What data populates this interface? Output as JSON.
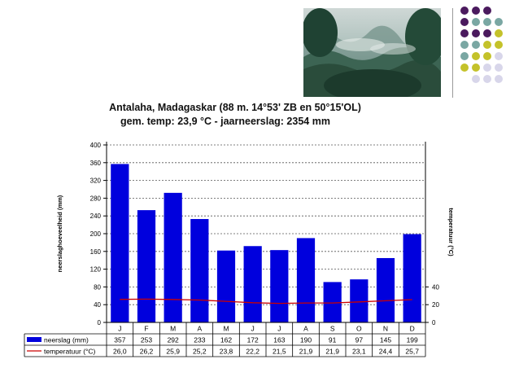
{
  "header": {
    "title_line1": "Antalaha, Madagaskar (88 m. 14°53' ZB en 50°15'OL)",
    "title_line2": "gem. temp:  23,9 °C - jaarneerslag: 2354 mm"
  },
  "colors": {
    "bar": "#0000dd",
    "temperature_line": "#cc0000",
    "dot_purple": "#4b1a5e",
    "dot_teal": "#7aa7a3",
    "dot_olive": "#c4c22a",
    "dot_lavender": "#d8d6ea"
  },
  "chart_data": {
    "type": "bar",
    "title": "Antalaha, Madagaskar (88 m. 14°53' ZB en 50°15'OL)",
    "subtitle": "gem. temp:  23,9 °C - jaarneerslag: 2354 mm",
    "categories": [
      "J",
      "F",
      "M",
      "A",
      "M",
      "J",
      "J",
      "A",
      "S",
      "O",
      "N",
      "D"
    ],
    "ylabel": "neerslaghoeveelheid (mm)",
    "y2label": "temperatuur (°C)",
    "ylim": [
      0,
      400
    ],
    "y_ticks": [
      "0",
      "40",
      "80",
      "120",
      "160",
      "200",
      "240",
      "280",
      "320",
      "360",
      "400"
    ],
    "y2lim": [
      0,
      200
    ],
    "y2_ticks": [
      "0",
      "20",
      "40"
    ],
    "grid": "horizontal dotted",
    "series": [
      {
        "name": "neerslag (mm)",
        "type": "bar",
        "values": [
          357,
          253,
          292,
          233,
          162,
          172,
          163,
          190,
          91,
          97,
          145,
          199
        ],
        "labels": [
          "357",
          "253",
          "292",
          "233",
          "162",
          "172",
          "163",
          "190",
          "91",
          "97",
          "145",
          "199"
        ]
      },
      {
        "name": "temperatuur (°C)",
        "type": "line",
        "values": [
          26.0,
          26.2,
          25.9,
          25.2,
          23.8,
          22.2,
          21.5,
          21.9,
          21.9,
          23.1,
          24.4,
          25.7
        ],
        "labels": [
          "26,0",
          "26,2",
          "25,9",
          "25,2",
          "23,8",
          "22,2",
          "21,5",
          "21,9",
          "21,9",
          "23,1",
          "24,4",
          "25,7"
        ]
      }
    ]
  }
}
